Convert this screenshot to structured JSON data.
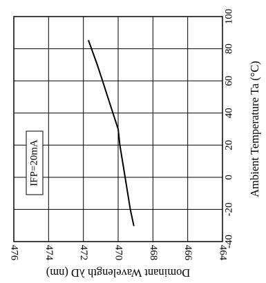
{
  "chart_data": {
    "type": "line",
    "title": "",
    "x_axis": {
      "label": "Ambient Temperature Ta (°C)",
      "range": [
        -40,
        100
      ],
      "ticks": [
        -40,
        -20,
        0,
        20,
        40,
        60,
        80,
        100
      ]
    },
    "y_axis": {
      "label": "Dominant Wavelength λD (nm)",
      "range": [
        464,
        476
      ],
      "ticks": [
        464,
        466,
        468,
        470,
        472,
        474,
        476
      ],
      "reversed": true
    },
    "grid": true,
    "annotation": "IFP=20mA",
    "series": [
      {
        "x": [
          -30,
          -20,
          0,
          20,
          30,
          40,
          50,
          60,
          70,
          85
        ],
        "y": [
          469.1,
          469.3,
          469.6,
          469.9,
          470.0,
          470.3,
          470.6,
          470.9,
          471.2,
          471.7
        ]
      }
    ]
  }
}
